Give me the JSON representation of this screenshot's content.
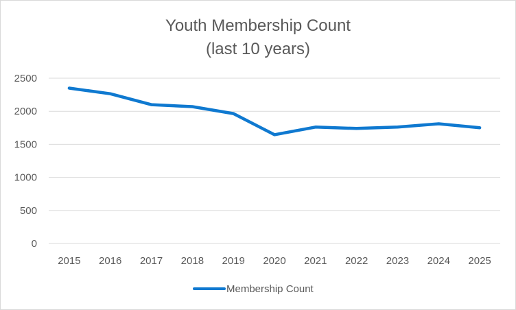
{
  "chart_data": {
    "type": "line",
    "title": "Youth Membership Count",
    "subtitle": "(last 10 years)",
    "xlabel": "",
    "ylabel": "",
    "categories": [
      "2015",
      "2016",
      "2017",
      "2018",
      "2019",
      "2020",
      "2021",
      "2022",
      "2023",
      "2024",
      "2025"
    ],
    "series": [
      {
        "name": "Membership Count",
        "values": [
          2350,
          2265,
          2100,
          2070,
          1965,
          1645,
          1760,
          1740,
          1760,
          1810,
          1750
        ],
        "color": "#0f79d0"
      }
    ],
    "ylim": [
      0,
      2500
    ],
    "yticks": [
      "0",
      "500",
      "1000",
      "1500",
      "2000",
      "2500"
    ],
    "grid": true,
    "legend": "bottom"
  }
}
